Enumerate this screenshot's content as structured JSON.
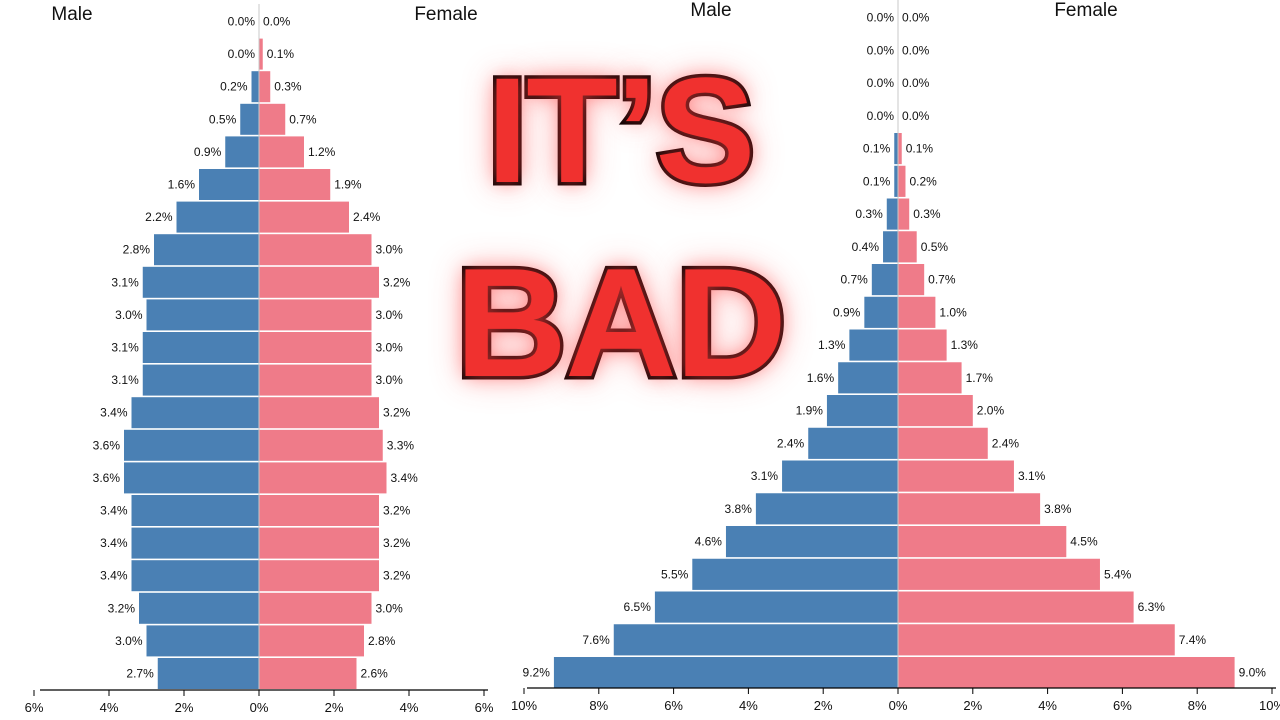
{
  "overlay": {
    "line1": "IT’S",
    "line2": "BAD"
  },
  "colors": {
    "male": "#4a80b4",
    "female": "#ef7b89",
    "axis": "#000000"
  },
  "chart_data": [
    {
      "type": "bar",
      "orientation": "horizontal",
      "subtype": "population-pyramid",
      "left_label": "Male",
      "right_label": "Female",
      "unit": "%",
      "xlim": [
        -6,
        6
      ],
      "x_ticks": [
        "6%",
        "4%",
        "2%",
        "0%",
        "2%",
        "4%",
        "6%"
      ],
      "series": [
        {
          "name": "Male",
          "values": [
            0.0,
            0.0,
            0.2,
            0.5,
            0.9,
            1.6,
            2.2,
            2.8,
            3.1,
            3.0,
            3.1,
            3.1,
            3.4,
            3.6,
            3.6,
            3.4,
            3.4,
            3.4,
            3.2,
            3.0,
            2.7
          ],
          "labels": [
            "0.0%",
            "0.0%",
            "0.2%",
            "0.5%",
            "0.9%",
            "1.6%",
            "2.2%",
            "2.8%",
            "3.1%",
            "3.0%",
            "3.1%",
            "3.1%",
            "3.4%",
            "3.6%",
            "3.6%",
            "3.4%",
            "3.4%",
            "3.4%",
            "3.2%",
            "3.0%",
            "2.7%"
          ]
        },
        {
          "name": "Female",
          "values": [
            0.0,
            0.1,
            0.3,
            0.7,
            1.2,
            1.9,
            2.4,
            3.0,
            3.2,
            3.0,
            3.0,
            3.0,
            3.2,
            3.3,
            3.4,
            3.2,
            3.2,
            3.2,
            3.0,
            2.8,
            2.6
          ],
          "labels": [
            "0.0%",
            "0.1%",
            "0.3%",
            "0.7%",
            "1.2%",
            "1.9%",
            "2.4%",
            "3.0%",
            "3.2%",
            "3.0%",
            "3.0%",
            "3.0%",
            "3.2%",
            "3.3%",
            "3.4%",
            "3.2%",
            "3.2%",
            "3.2%",
            "3.0%",
            "2.8%",
            "2.6%"
          ]
        }
      ],
      "grid": false
    },
    {
      "type": "bar",
      "orientation": "horizontal",
      "subtype": "population-pyramid",
      "left_label": "Male",
      "right_label": "Female",
      "unit": "%",
      "xlim": [
        -10,
        10
      ],
      "x_ticks": [
        "10%",
        "8%",
        "6%",
        "4%",
        "2%",
        "0%",
        "2%",
        "4%",
        "6%",
        "8%",
        "10%"
      ],
      "series": [
        {
          "name": "Male",
          "values": [
            0.0,
            0.0,
            0.0,
            0.0,
            0.1,
            0.1,
            0.3,
            0.4,
            0.7,
            0.9,
            1.3,
            1.6,
            1.9,
            2.4,
            3.1,
            3.8,
            4.6,
            5.5,
            6.5,
            7.6,
            9.2
          ],
          "labels": [
            "0.0%",
            "0.0%",
            "0.0%",
            "0.0%",
            "0.1%",
            "0.1%",
            "0.3%",
            "0.4%",
            "0.7%",
            "0.9%",
            "1.3%",
            "1.6%",
            "1.9%",
            "2.4%",
            "3.1%",
            "3.8%",
            "4.6%",
            "5.5%",
            "6.5%",
            "7.6%",
            "9.2%"
          ]
        },
        {
          "name": "Female",
          "values": [
            0.0,
            0.0,
            0.0,
            0.0,
            0.1,
            0.2,
            0.3,
            0.5,
            0.7,
            1.0,
            1.3,
            1.7,
            2.0,
            2.4,
            3.1,
            3.8,
            4.5,
            5.4,
            6.3,
            7.4,
            9.0
          ],
          "labels": [
            "0.0%",
            "0.0%",
            "0.0%",
            "0.0%",
            "0.1%",
            "0.2%",
            "0.3%",
            "0.5%",
            "0.7%",
            "1.0%",
            "1.3%",
            "1.7%",
            "2.0%",
            "2.4%",
            "3.1%",
            "3.8%",
            "4.5%",
            "5.4%",
            "6.3%",
            "7.4%",
            "9.0%"
          ]
        }
      ],
      "grid": false
    }
  ]
}
